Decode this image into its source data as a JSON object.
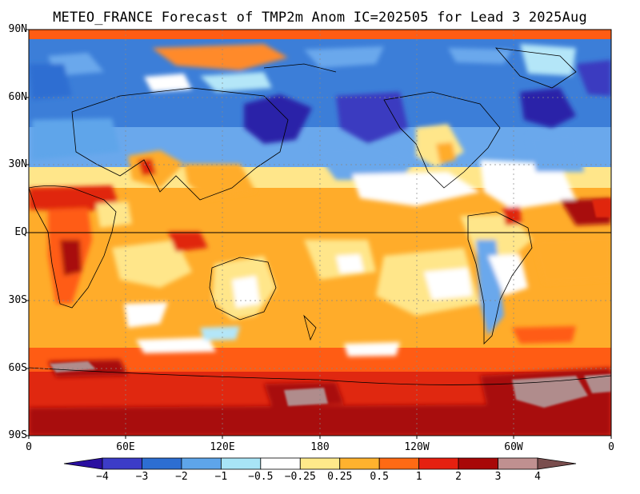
{
  "title": "METEO_FRANCE Forecast of TMP2m Anom IC=202505 for Lead 3 2025Aug",
  "lat_labels": [
    "90N",
    "60N",
    "30N",
    "EQ",
    "30S",
    "60S",
    "90S"
  ],
  "lon_labels": [
    "0",
    "60E",
    "120E",
    "180",
    "120W",
    "60W",
    "0"
  ],
  "colorbar": {
    "labels": [
      "−4",
      "−3",
      "−2",
      "−1",
      "−0.5",
      "−0.25",
      "0.25",
      "0.5",
      "1",
      "2",
      "3",
      "4"
    ],
    "colors": [
      "#2a0fa0",
      "#3c3cc8",
      "#2d6ed2",
      "#5ea5ea",
      "#a8e4f6",
      "#ffffff",
      "#ffe98a",
      "#ffb22e",
      "#ff6a14",
      "#e52010",
      "#a80808",
      "#c09090",
      "#7a4e4e"
    ]
  },
  "colors": {
    "deep_blue": "#3a3ac0",
    "blue": "#3c7ed8",
    "mid_blue": "#6aa8ec",
    "light_blue": "#b4e6f8",
    "yellow": "#ffe68a",
    "orange": "#ffac2a",
    "red_orange": "#ff5c14",
    "red": "#e02810",
    "dark_red": "#a80a08",
    "brown": "#b08c8c"
  }
}
